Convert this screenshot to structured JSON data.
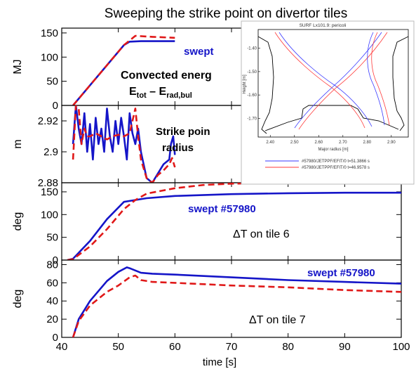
{
  "title": "Sweeping the strike point on divertor tiles",
  "colors": {
    "blue": "#1515c8",
    "red": "#e01818",
    "inset_blue": "#3a3aff",
    "inset_red": "#ff3a3a"
  },
  "xaxis": {
    "label": "time [s]",
    "range": [
      40,
      100
    ],
    "ticks": [
      "40",
      "50",
      "60",
      "70",
      "80",
      "90",
      "100"
    ]
  },
  "chart_data": [
    {
      "type": "line",
      "ylabel": "MJ",
      "ylim": [
        0,
        160
      ],
      "yticks": [
        "0",
        "50",
        "100",
        "150"
      ],
      "annotations": {
        "series_label": "swept",
        "desc": "Convected energ",
        "formula_base": "E",
        "formula_sub1": "tot",
        "formula_mid": " – E",
        "formula_sub2": "rad,bul"
      },
      "series": [
        {
          "color": "blue",
          "dash": false,
          "x": [
            42,
            51,
            52,
            54,
            60
          ],
          "y": [
            0,
            125,
            132,
            133,
            133
          ]
        },
        {
          "color": "red",
          "dash": true,
          "x": [
            42,
            51,
            53,
            56,
            60
          ],
          "y": [
            0,
            125,
            144,
            142,
            140
          ]
        }
      ]
    },
    {
      "type": "line",
      "ylabel": "m",
      "ylim": [
        2.88,
        2.93
      ],
      "yticks": [
        "2.88",
        "2.9",
        "2.92"
      ],
      "annotations": {
        "desc1": "Strike poin",
        "desc2": "radius"
      },
      "series": [
        {
          "color": "blue",
          "dash": false,
          "x": [
            42,
            42.5,
            43,
            43.5,
            44,
            44.5,
            45,
            45.5,
            46,
            46.5,
            47,
            47.5,
            48,
            48.5,
            49,
            49.5,
            50,
            50.5,
            51,
            51.5,
            52,
            52.5,
            53,
            53.5,
            54,
            55,
            56,
            57,
            58,
            59,
            59.3,
            59.7,
            60
          ],
          "y": [
            2.905,
            2.93,
            2.915,
            2.905,
            2.925,
            2.9,
            2.918,
            2.895,
            2.922,
            2.905,
            2.915,
            2.9,
            2.928,
            2.91,
            2.9,
            2.92,
            2.905,
            2.922,
            2.91,
            2.895,
            2.925,
            2.912,
            2.905,
            2.915,
            2.9,
            2.883,
            2.88,
            2.886,
            2.892,
            2.895,
            2.905,
            2.91,
            2.898
          ]
        },
        {
          "color": "red",
          "dash": true,
          "x": [
            42,
            42.5,
            43,
            43.5,
            44,
            44.5,
            45,
            46,
            47,
            48,
            49,
            50,
            51,
            52,
            53,
            53.5,
            54,
            55,
            56,
            57,
            58,
            59,
            59.5,
            60
          ],
          "y": [
            2.895,
            2.93,
            2.928,
            2.905,
            2.915,
            2.91,
            2.91,
            2.912,
            2.91,
            2.908,
            2.91,
            2.911,
            2.91,
            2.912,
            2.928,
            2.91,
            2.895,
            2.883,
            2.88,
            2.885,
            2.888,
            2.892,
            2.896,
            2.89
          ]
        }
      ]
    },
    {
      "type": "line",
      "ylabel": "deg",
      "ylim": [
        0,
        170
      ],
      "yticks": [
        "0",
        "50",
        "100",
        "150"
      ],
      "annotations": {
        "series_label": "swept #57980",
        "delta": "ΔT on tile 6"
      },
      "series": [
        {
          "color": "blue",
          "dash": false,
          "x": [
            41,
            42,
            45,
            48,
            51,
            52,
            55,
            60,
            70,
            80,
            90,
            100
          ],
          "y": [
            0,
            3,
            42,
            90,
            128,
            130,
            136,
            141,
            145,
            147,
            148,
            148
          ]
        },
        {
          "color": "red",
          "dash": true,
          "x": [
            41,
            42,
            45,
            48,
            51,
            53,
            55,
            60,
            65,
            70,
            80,
            90,
            100
          ],
          "y": [
            0,
            2,
            30,
            68,
            112,
            132,
            146,
            158,
            165,
            168,
            170,
            170,
            170
          ]
        }
      ]
    },
    {
      "type": "line",
      "ylabel": "deg",
      "ylim": [
        0,
        85
      ],
      "yticks": [
        "0",
        "20",
        "40",
        "60",
        "80"
      ],
      "annotations": {
        "series_label": "swept #57980",
        "delta": "ΔT on tile 7"
      },
      "series": [
        {
          "color": "blue",
          "dash": false,
          "x": [
            42,
            43,
            45,
            48,
            50,
            51.5,
            52,
            54,
            56,
            60,
            70,
            80,
            90,
            100
          ],
          "y": [
            0,
            20,
            40,
            62,
            72,
            77,
            76,
            71,
            70,
            69,
            66,
            63,
            61,
            59
          ]
        },
        {
          "color": "red",
          "dash": true,
          "x": [
            42,
            43,
            45,
            48,
            50,
            52,
            53,
            54,
            56,
            60,
            70,
            80,
            90,
            100
          ],
          "y": [
            0,
            18,
            35,
            50,
            57,
            66,
            68,
            63,
            61,
            60,
            57,
            55,
            52,
            50
          ]
        }
      ]
    }
  ],
  "inset": {
    "title": "SURF Lx101.9: pericoli",
    "xlabel": "Major radius [m]",
    "ylabel": "Height [m]",
    "xlim": [
      2.35,
      2.97
    ],
    "ylim": [
      -1.78,
      -1.32
    ],
    "xticks": [
      "2.40",
      "2.50",
      "2.60",
      "2.70",
      "2.80",
      "2.90"
    ],
    "yticks": [
      "-1.40",
      "-1.50",
      "-1.60",
      "-1.70"
    ],
    "legend": [
      "#57980/JETPPF/EFIT/0 t=51.3866 s",
      "#57980/JETPPF/EFIT/0 t=46.9578 s"
    ]
  }
}
